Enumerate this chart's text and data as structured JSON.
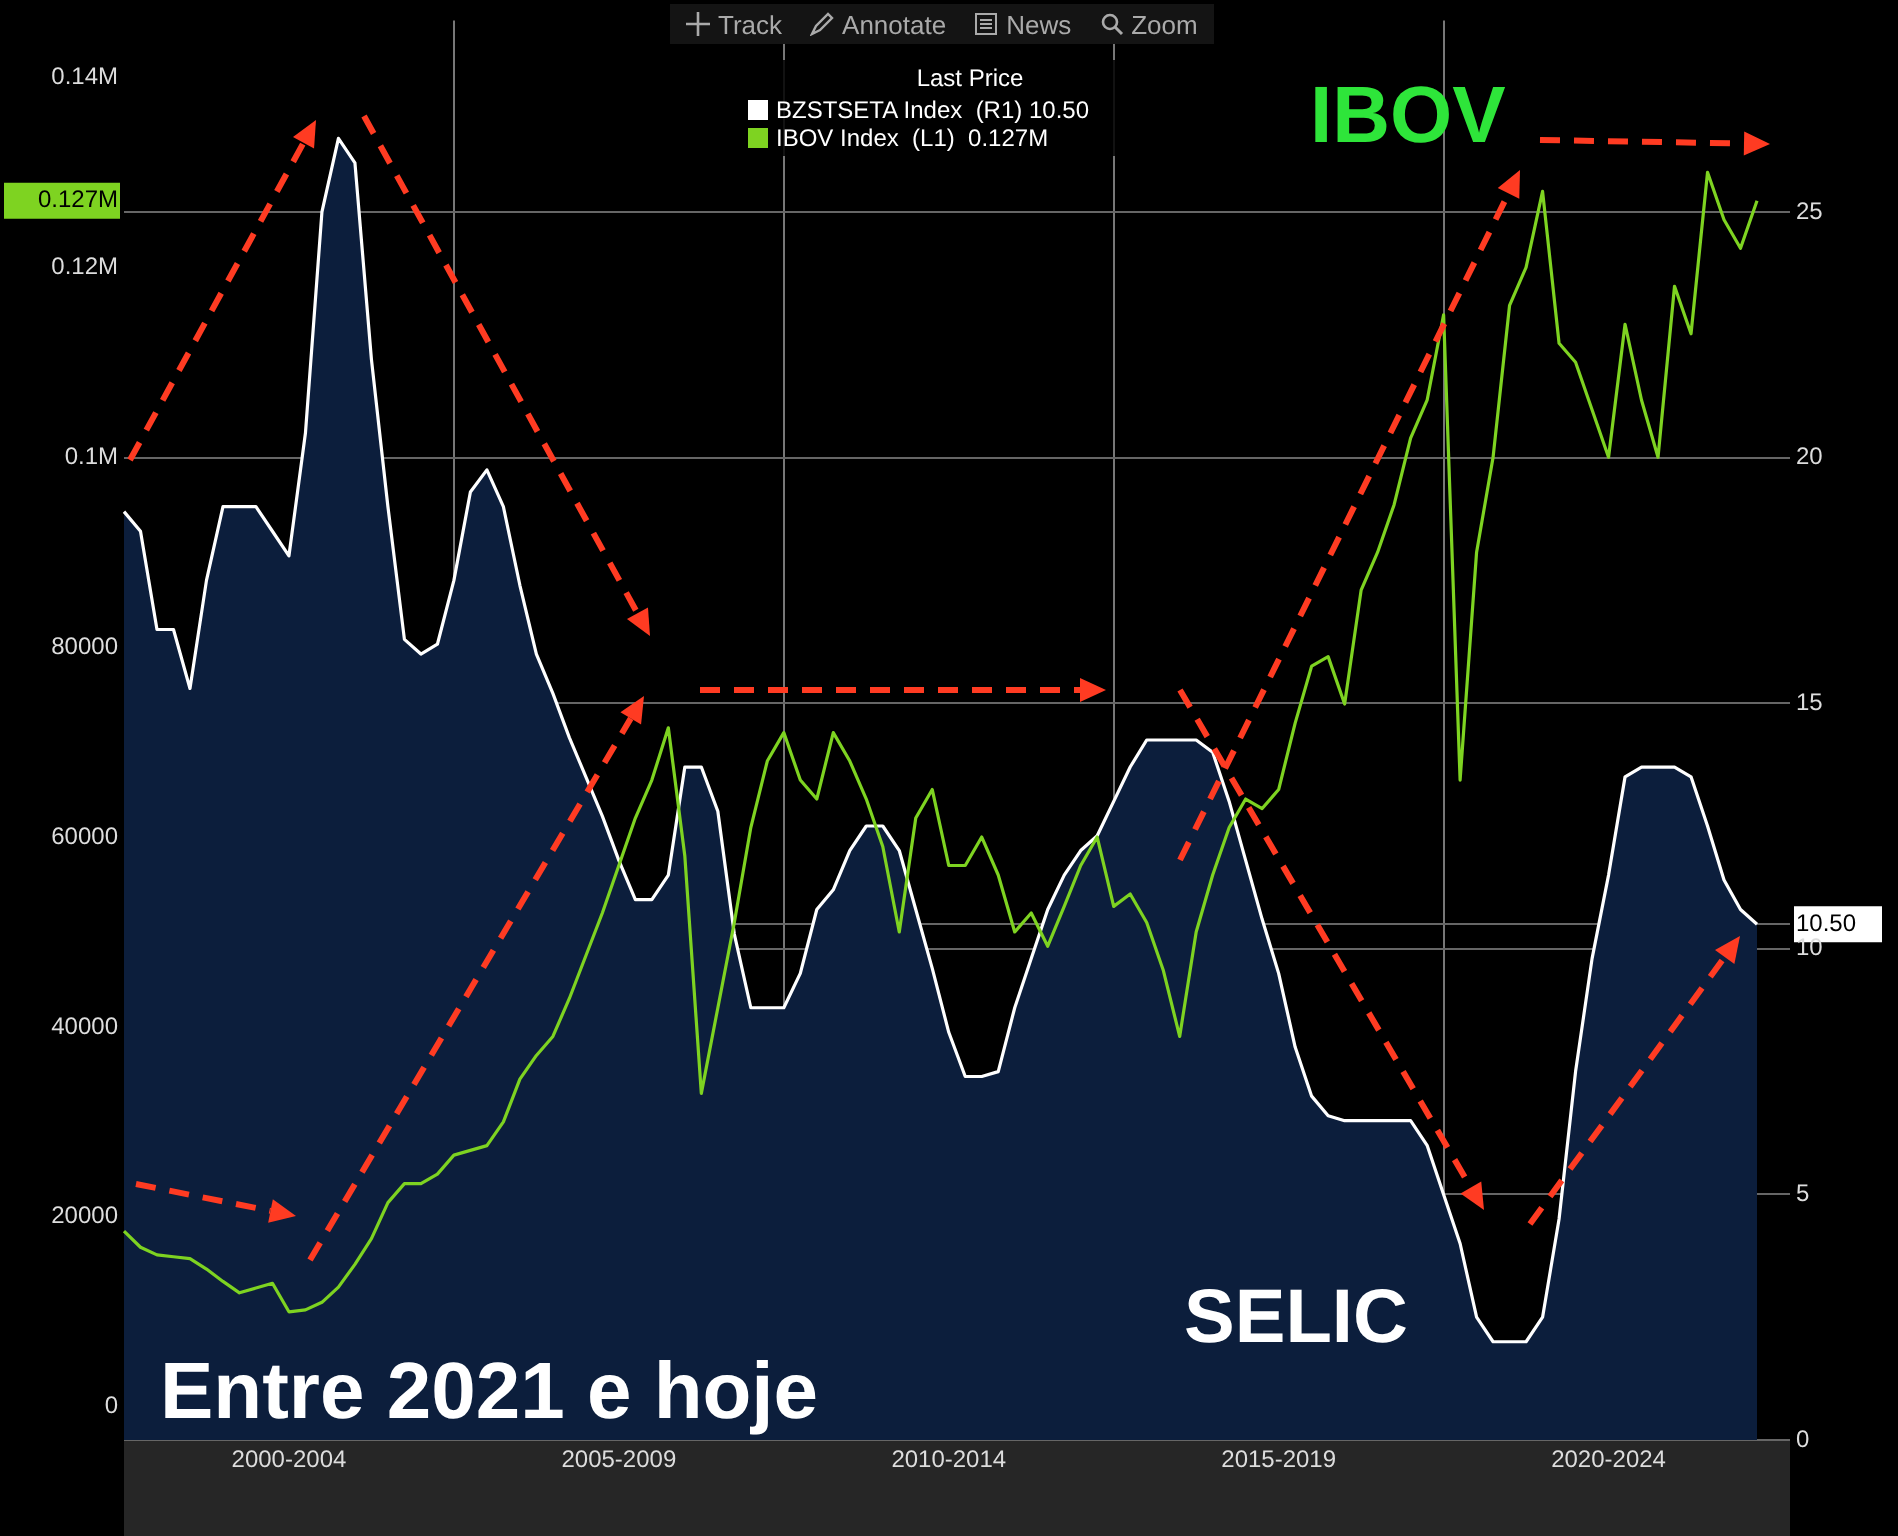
{
  "chart_data": {
    "type": "line",
    "legend_title": "Last Price",
    "legend": "top",
    "grid": true,
    "categories": [
      null,
      null,
      null,
      null,
      null,
      null,
      null,
      null,
      null,
      null,
      "2000-2004",
      null,
      null,
      null,
      null,
      null,
      null,
      null,
      null,
      null,
      null,
      null,
      null,
      null,
      null,
      null,
      null,
      null,
      null,
      null,
      "2005-2009",
      null,
      null,
      null,
      null,
      null,
      null,
      null,
      null,
      null,
      null,
      null,
      null,
      null,
      null,
      null,
      null,
      null,
      null,
      null,
      "2010-2014",
      null,
      null,
      null,
      null,
      null,
      null,
      null,
      null,
      null,
      null,
      null,
      null,
      null,
      null,
      null,
      null,
      null,
      null,
      null,
      "2015-2019",
      null,
      null,
      null,
      null,
      null,
      null,
      null,
      null,
      null,
      null,
      null,
      null,
      null,
      null,
      null,
      null,
      null,
      null,
      null,
      "2020-2024",
      null,
      null,
      null,
      null,
      null,
      null,
      null,
      null,
      null,
      null,
      null
    ],
    "ylim": [
      -3500,
      146000
    ],
    "yticks": [
      0,
      20000,
      40000,
      60000,
      80000,
      {
        "value": 100000,
        "label": "0.1M"
      },
      {
        "value": 120000,
        "label": "0.12M"
      },
      {
        "value": 127000,
        "label": "0.127M"
      },
      {
        "value": 140000,
        "label": "0.14M"
      }
    ],
    "y2lim": [
      0,
      28.9
    ],
    "y2ticks": [
      0,
      5,
      10,
      {
        "value": 10.5,
        "label": "10.50"
      },
      15,
      20,
      25
    ],
    "annotations": [
      "IBOV",
      "SELIC",
      "Entre 2021 e hoje",
      "Track",
      "Annotate",
      "News",
      "Zoom"
    ],
    "series": [
      {
        "name": "BZSTSETA Index  (R1) 10.50",
        "type": "area",
        "axis": "y2",
        "color": "#ffffff",
        "values": [
          18.9,
          18.5,
          16.5,
          16.5,
          15.3,
          17.5,
          19.0,
          19.0,
          19.0,
          18.5,
          18.0,
          20.5,
          25.0,
          26.5,
          26.0,
          22.0,
          19.0,
          16.3,
          16.0,
          16.2,
          17.5,
          19.3,
          19.75,
          19.0,
          17.4,
          16.0,
          15.2,
          14.3,
          13.5,
          12.7,
          11.8,
          11.0,
          11.0,
          11.5,
          13.7,
          13.7,
          12.8,
          10.3,
          8.8,
          8.8,
          8.8,
          9.5,
          10.8,
          11.2,
          12.0,
          12.5,
          12.5,
          12.0,
          10.8,
          9.6,
          8.3,
          7.4,
          7.4,
          7.5,
          8.8,
          9.8,
          10.8,
          11.5,
          12.0,
          12.3,
          13.0,
          13.7,
          14.25,
          14.25,
          14.25,
          14.25,
          14.0,
          13.0,
          11.8,
          10.6,
          9.5,
          8.0,
          7.0,
          6.6,
          6.5,
          6.5,
          6.5,
          6.5,
          6.5,
          6.0,
          5.0,
          4.0,
          2.5,
          2.0,
          2.0,
          2.0,
          2.5,
          4.5,
          7.5,
          9.8,
          11.5,
          13.5,
          13.7,
          13.7,
          13.7,
          13.5,
          12.5,
          11.4,
          10.8,
          10.5,
          null,
          null
        ]
      },
      {
        "name": "IBOV Index  (L1)  0.127M",
        "axis": "y",
        "color": "#7ed321",
        "values": [
          18500,
          16800,
          16000,
          15800,
          15600,
          14500,
          13200,
          12000,
          12500,
          13000,
          10000,
          10200,
          11000,
          12600,
          15000,
          17700,
          21500,
          23500,
          23500,
          24500,
          26500,
          27000,
          27500,
          30000,
          34500,
          37000,
          39000,
          43000,
          47500,
          52000,
          57000,
          62000,
          66000,
          71500,
          58000,
          33000,
          42000,
          51000,
          61000,
          68000,
          71000,
          66000,
          64000,
          71000,
          68000,
          64000,
          59000,
          50000,
          62000,
          65000,
          57000,
          57000,
          60000,
          56000,
          50000,
          52000,
          48500,
          52700,
          57000,
          60000,
          52700,
          54000,
          51000,
          46000,
          39000,
          50000,
          56000,
          61000,
          64000,
          63000,
          65000,
          72000,
          78000,
          79000,
          74000,
          86000,
          90000,
          95000,
          102000,
          106000,
          115000,
          66000,
          90000,
          100000,
          116000,
          120000,
          128000,
          112000,
          110000,
          105000,
          100000,
          114000,
          106000,
          100000,
          118000,
          113000,
          130000,
          125000,
          122000,
          127000,
          null,
          null
        ]
      }
    ]
  }
}
